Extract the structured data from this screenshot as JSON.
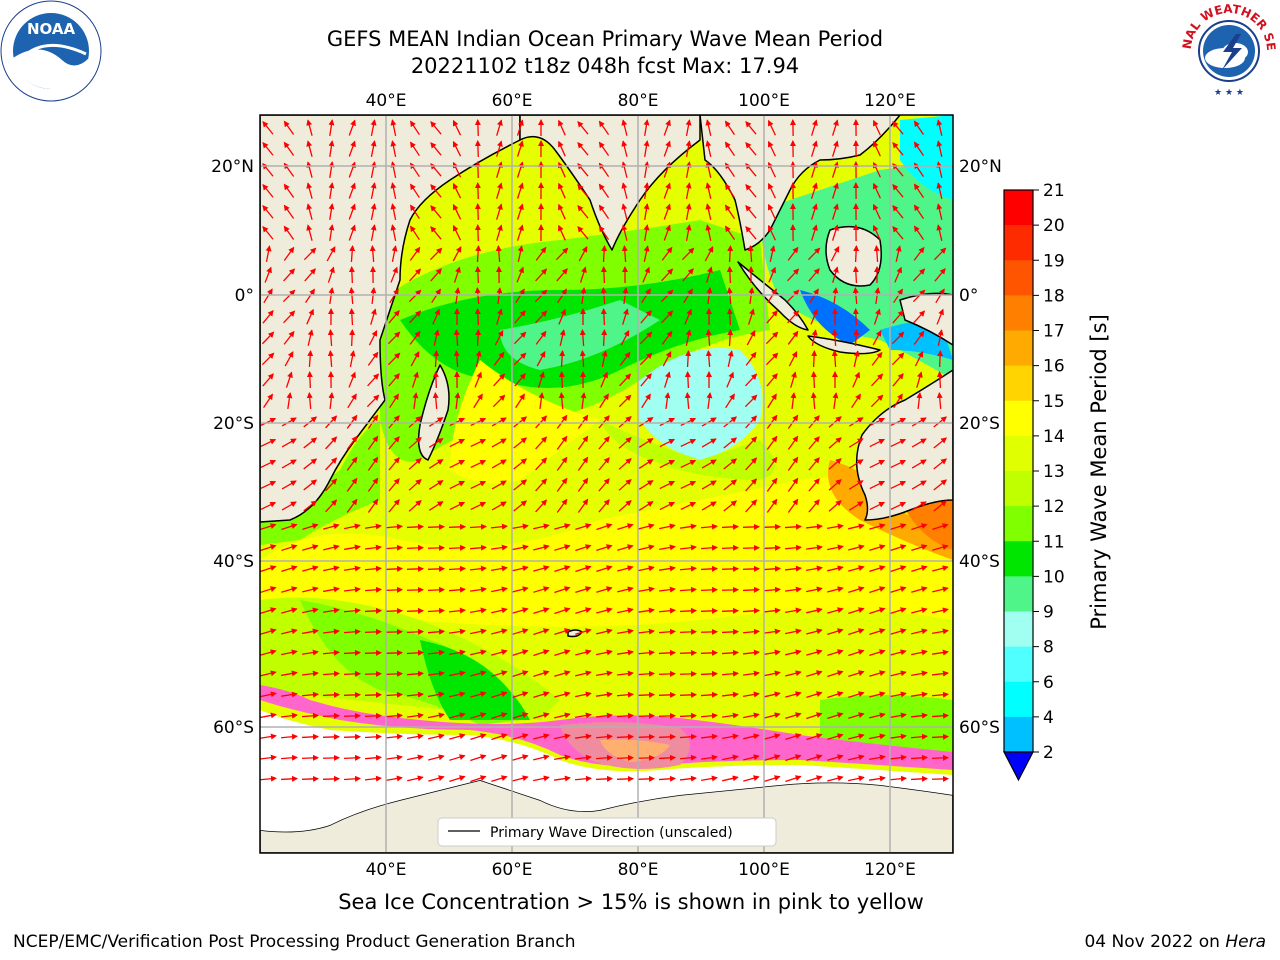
{
  "title_line1": "GEFS MEAN Indian Ocean Primary Wave Mean Period",
  "title_line2": "20221102 t18z 048h fcst   Max: 17.94",
  "map": {
    "lon_labels": [
      "40°E",
      "60°E",
      "80°E",
      "100°E",
      "120°E"
    ],
    "lat_labels": [
      "20°N",
      "0°",
      "20°S",
      "40°S",
      "60°S"
    ],
    "lon_values": [
      40,
      60,
      80,
      100,
      120
    ],
    "lat_values": [
      20,
      0,
      -20,
      -40,
      -60
    ],
    "lon_range": [
      20,
      130
    ],
    "lat_range": [
      -80,
      28
    ],
    "legend_label": "Primary Wave Direction (unscaled)",
    "land_color": "#efecdc",
    "arrow_color": "#ff0000"
  },
  "colorbar": {
    "title": "Primary Wave Mean Period [s]",
    "ticks": [
      "21",
      "20",
      "19",
      "18",
      "17",
      "16",
      "15",
      "14",
      "13",
      "12",
      "11",
      "10",
      "9",
      "8",
      "6",
      "4",
      "2"
    ],
    "colors": [
      "#ff0000",
      "#ff2b00",
      "#ff5500",
      "#ff8000",
      "#ffaa00",
      "#ffd400",
      "#ffff00",
      "#e0ff00",
      "#c0ff00",
      "#80ff00",
      "#00e600",
      "#50f58a",
      "#a0fff0",
      "#50ffff",
      "#00ffff",
      "#00c0ff",
      "#0070ff"
    ],
    "extend_color": "#0000ff"
  },
  "caption": "Sea Ice Concentration > 15% is shown in pink to yellow",
  "footer_left": "NCEP/EMC/Verification Post Processing Product Generation Branch",
  "footer_date": "04 Nov 2022 on",
  "footer_host": "Hera",
  "logos": {
    "noaa": "NOAA",
    "nws": "NATIONAL WEATHER SERVICE"
  }
}
